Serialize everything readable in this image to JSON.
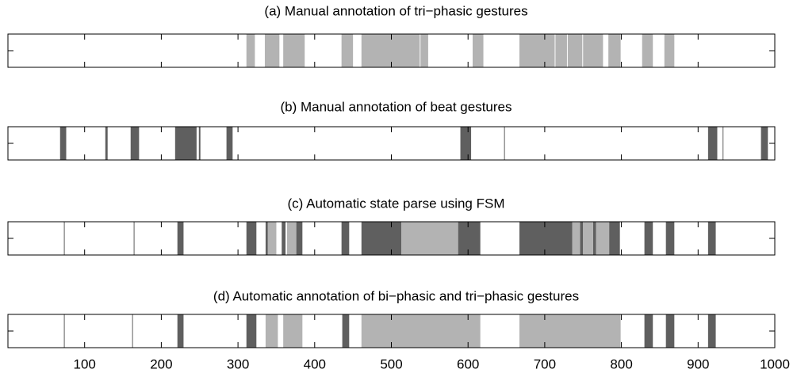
{
  "chart_data": [
    {
      "type": "timeline",
      "title": "(a) Manual annotation of tri−phasic gestures",
      "xlim": [
        0,
        1000
      ],
      "xticks": [
        100,
        200,
        300,
        400,
        500,
        600,
        700,
        800,
        900,
        1000
      ],
      "series": [
        {
          "color": "#b3b3b3",
          "intervals": [
            [
              311,
              322
            ],
            [
              335,
              354
            ],
            [
              359,
              387
            ],
            [
              435,
              450
            ],
            [
              461,
              537
            ],
            [
              538,
              548
            ],
            [
              606,
              620
            ],
            [
              667,
              713
            ],
            [
              714,
              729
            ],
            [
              730,
              749
            ],
            [
              750,
              776
            ],
            [
              783,
              799
            ],
            [
              827,
              841
            ],
            [
              856,
              869
            ]
          ]
        }
      ]
    },
    {
      "type": "timeline",
      "title": "(b) Manual annotation of beat gestures",
      "xlim": [
        0,
        1000
      ],
      "xticks": [
        100,
        200,
        300,
        400,
        500,
        600,
        700,
        800,
        900,
        1000
      ],
      "series": [
        {
          "color": "#5f5f5f",
          "intervals": [
            [
              68,
              76
            ],
            [
              127,
              130
            ],
            [
              160,
              171
            ],
            [
              218,
              246
            ],
            [
              249,
              251
            ],
            [
              285,
              293
            ],
            [
              590,
              604
            ],
            [
              647,
              648
            ],
            [
              913,
              925
            ],
            [
              932,
              933
            ],
            [
              982,
              991
            ]
          ]
        }
      ]
    },
    {
      "type": "timeline",
      "title": "(c) Automatic state parse using FSM",
      "xlim": [
        0,
        1000
      ],
      "xticks": [
        100,
        200,
        300,
        400,
        500,
        600,
        700,
        800,
        900,
        1000
      ],
      "series": [
        {
          "color": "#5f5f5f",
          "intervals": [
            [
              73,
              74
            ],
            [
              164,
              165
            ],
            [
              221,
              229
            ],
            [
              311,
              324
            ],
            [
              336,
              339
            ],
            [
              357,
              362
            ],
            [
              376,
              384
            ],
            [
              435,
              445
            ],
            [
              461,
              513
            ],
            [
              587,
              616
            ],
            [
              667,
              736
            ],
            [
              746,
              750
            ],
            [
              763,
              767
            ],
            [
              784,
              798
            ],
            [
              830,
              841
            ],
            [
              858,
              869
            ],
            [
              913,
              923
            ]
          ]
        },
        {
          "color": "#b3b3b3",
          "intervals": [
            [
              339,
              350
            ],
            [
              364,
              376
            ],
            [
              513,
              587
            ],
            [
              736,
              746
            ],
            [
              750,
              763
            ],
            [
              767,
              784
            ]
          ]
        }
      ]
    },
    {
      "type": "timeline",
      "title": "(d) Automatic annotation of bi−phasic and tri−phasic gestures",
      "xlim": [
        0,
        1000
      ],
      "xticks": [
        100,
        200,
        300,
        400,
        500,
        600,
        700,
        800,
        900,
        1000
      ],
      "series": [
        {
          "color": "#5f5f5f",
          "intervals": [
            [
              73,
              74
            ],
            [
              162,
              163
            ],
            [
              221,
              229
            ],
            [
              311,
              324
            ],
            [
              436,
              445
            ],
            [
              830,
              841
            ],
            [
              858,
              869
            ],
            [
              913,
              923
            ]
          ]
        },
        {
          "color": "#b3b3b3",
          "intervals": [
            [
              336,
              352
            ],
            [
              359,
              384
            ],
            [
              461,
              616
            ],
            [
              667,
              799
            ]
          ]
        }
      ]
    }
  ]
}
